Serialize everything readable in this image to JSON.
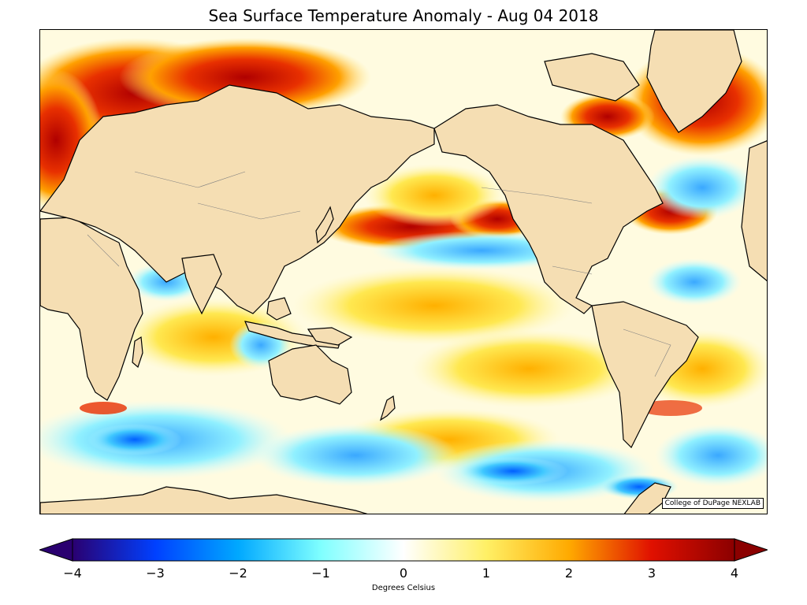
{
  "title": "Sea Surface Temperature Anomaly - Aug 04 2018",
  "credit": "College of DuPage NEXLAB",
  "colorbar": {
    "label": "Degrees Celsius",
    "min": -4,
    "max": 4,
    "ticks": [
      "−4",
      "−3",
      "−2",
      "−1",
      "0",
      "1",
      "2",
      "3",
      "4"
    ],
    "colors": [
      "#2a0070",
      "#0040ff",
      "#00a8ff",
      "#7fffff",
      "#ffffff",
      "#fff066",
      "#ffaa00",
      "#e01000",
      "#8b0000"
    ]
  },
  "colors": {
    "land": "#f5deb3",
    "coast": "#000000",
    "border": "#808080"
  }
}
